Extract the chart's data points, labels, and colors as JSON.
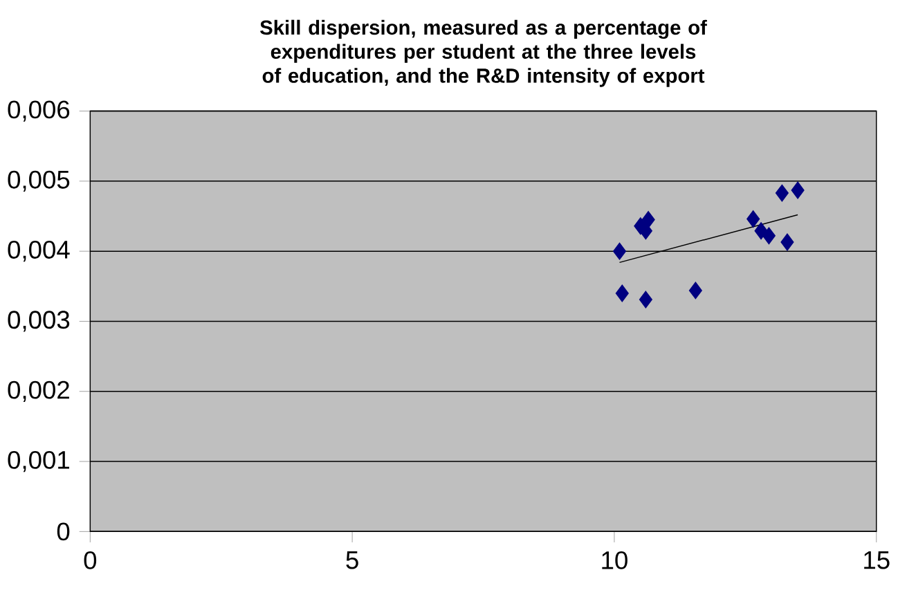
{
  "chart_data": {
    "type": "scatter",
    "title": "Skill dispersion, measured as a percentage of expenditures per student at the three levels of education, and the R&D intensity of export",
    "xlim": [
      0,
      15
    ],
    "xticks": [
      0,
      5,
      10,
      15
    ],
    "ylim": [
      0,
      0.006
    ],
    "yticks": [
      {
        "value": 0,
        "label": "0"
      },
      {
        "value": 0.001,
        "label": "0,001"
      },
      {
        "value": 0.002,
        "label": "0,002"
      },
      {
        "value": 0.003,
        "label": "0,003"
      },
      {
        "value": 0.004,
        "label": "0,004"
      },
      {
        "value": 0.005,
        "label": "0,005"
      },
      {
        "value": 0.006,
        "label": "0,006"
      }
    ],
    "grid": "y",
    "marker": "diamond",
    "series": [
      {
        "color": "#000080",
        "x": [
          10.1,
          10.15,
          10.6,
          10.5,
          10.65,
          10.6,
          11.55,
          12.65,
          12.8,
          12.95,
          13.2,
          13.5,
          13.3
        ],
        "values": [
          0.004,
          0.0034,
          0.00331,
          0.00436,
          0.00445,
          0.00429,
          0.00344,
          0.00446,
          0.00429,
          0.00422,
          0.00483,
          0.00487,
          0.00413
        ]
      },
      {
        "type": "line",
        "marker": "none",
        "color": "#000000",
        "x": [
          10.1,
          13.5
        ],
        "values": [
          0.00384,
          0.00452
        ]
      }
    ]
  }
}
